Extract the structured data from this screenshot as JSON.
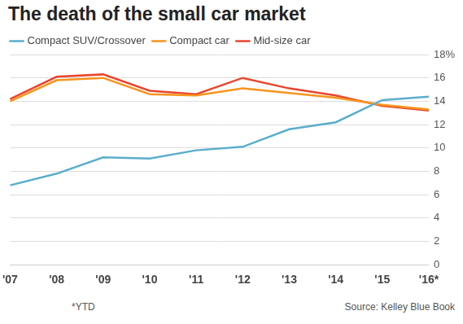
{
  "chart_data": {
    "type": "line",
    "title": "The death of the small car market",
    "categories": [
      "'07",
      "'08",
      "'09",
      "'10",
      "'11",
      "'12",
      "'13",
      "'14",
      "'15",
      "'16*"
    ],
    "series": [
      {
        "name": "Compact SUV/Crossover",
        "color": "#5aaecb",
        "values": [
          6.8,
          7.8,
          9.2,
          9.1,
          9.8,
          10.1,
          11.6,
          12.2,
          14.1,
          14.4
        ]
      },
      {
        "name": "Compact car",
        "color": "#f7941d",
        "values": [
          14.0,
          15.8,
          16.0,
          14.6,
          14.5,
          15.1,
          14.7,
          14.3,
          13.7,
          13.3
        ]
      },
      {
        "name": "Mid-size car",
        "color": "#e8462f",
        "values": [
          14.2,
          16.1,
          16.3,
          14.9,
          14.6,
          16.0,
          15.1,
          14.5,
          13.6,
          13.2
        ]
      }
    ],
    "ylim": [
      0,
      18
    ],
    "yticks": [
      0,
      2,
      4,
      6,
      8,
      10,
      12,
      14,
      16,
      {
        "value": 18,
        "label": "18%"
      }
    ],
    "grid": true,
    "legend": "top-left",
    "footnote": "*YTD",
    "source": "Source: Kelley Blue Book"
  }
}
